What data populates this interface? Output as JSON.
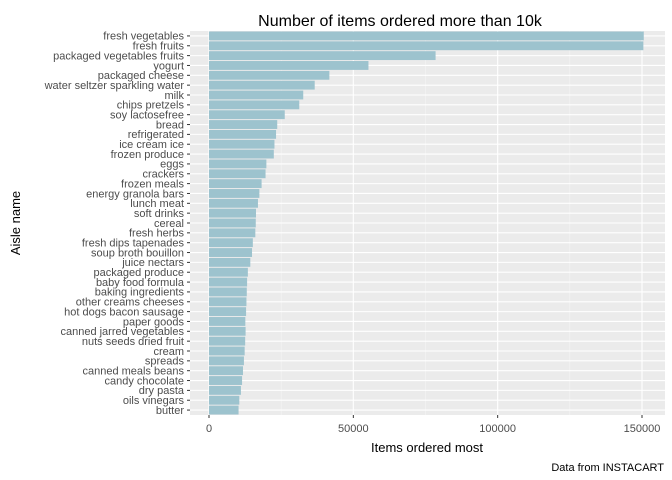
{
  "chart_data": {
    "type": "bar",
    "orientation": "horizontal",
    "title": "Number of items ordered more than 10k",
    "xlabel": "Items ordered most",
    "ylabel": "Aisle name",
    "caption": "Data from INSTACART",
    "xlim": [
      0,
      153000
    ],
    "x_ticks": [
      0,
      50000,
      100000,
      150000
    ],
    "x_tick_labels": [
      "0",
      "50000",
      "100000",
      "150000"
    ],
    "grid": true,
    "bar_color": "#9DC3CE",
    "panel_color": "#EBEBEB",
    "categories": [
      "fresh vegetables",
      "fresh fruits",
      "packaged vegetables fruits",
      "yogurt",
      "packaged cheese",
      "water seltzer sparkling water",
      "milk",
      "chips pretzels",
      "soy lactosefree",
      "bread",
      "refrigerated",
      "ice cream ice",
      "frozen produce",
      "eggs",
      "crackers",
      "frozen meals",
      "energy granola bars",
      "lunch meat",
      "soft drinks",
      "cereal",
      "fresh herbs",
      "fresh dips tapenades",
      "soup broth bouillon",
      "juice nectars",
      "packaged produce",
      "baby food formula",
      "baking ingredients",
      "other creams cheeses",
      "hot dogs bacon sausage",
      "paper goods",
      "canned jarred vegetables",
      "nuts seeds dried fruit",
      "cream",
      "spreads",
      "canned meals beans",
      "candy chocolate",
      "dry pasta",
      "oils vinegars",
      "butter"
    ],
    "values": [
      150609,
      150473,
      78493,
      55240,
      41699,
      36617,
      32644,
      31269,
      26240,
      23635,
      23228,
      22676,
      22453,
      19875,
      19592,
      18221,
      17449,
      16957,
      16279,
      16201,
      16052,
      15185,
      14903,
      14312,
      13460,
      13198,
      13088,
      12970,
      12846,
      12588,
      12679,
      12532,
      12356,
      12102,
      11774,
      11453,
      11058,
      10498,
      10240
    ]
  }
}
